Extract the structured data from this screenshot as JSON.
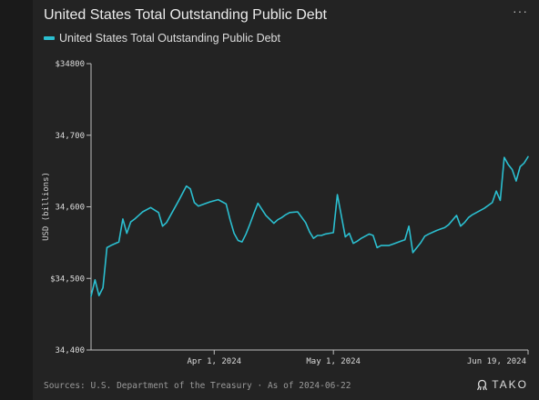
{
  "header": {
    "title": "United States Total Outstanding Public Debt",
    "menu_glyph": "···"
  },
  "chart_data": {
    "type": "line",
    "title": "United States Total Outstanding Public Debt",
    "ylabel": "USD (billions)",
    "xlabel": "",
    "ylim": [
      34400,
      34800
    ],
    "xlim": [
      "2024-03-01",
      "2024-06-19"
    ],
    "yticks": [
      34400,
      34500,
      34600,
      34700,
      34800
    ],
    "ytick_labels": [
      "34,400",
      "$34,500",
      "34,600",
      "34,700",
      "$34800"
    ],
    "xticks": [
      "2024-04-01",
      "2024-05-01",
      "2024-06-19"
    ],
    "xtick_labels": [
      "Apr 1, 2024",
      "May 1, 2024",
      "Jun 19, 2024"
    ],
    "grid": false,
    "legend": "top-left",
    "series": [
      {
        "name": "United States Total Outstanding Public Debt",
        "color": "#2bbfd0",
        "x": [
          "2024-03-01",
          "2024-03-02",
          "2024-03-03",
          "2024-03-04",
          "2024-03-05",
          "2024-03-06",
          "2024-03-08",
          "2024-03-09",
          "2024-03-10",
          "2024-03-11",
          "2024-03-12",
          "2024-03-13",
          "2024-03-14",
          "2024-03-16",
          "2024-03-18",
          "2024-03-19",
          "2024-03-20",
          "2024-03-21",
          "2024-03-23",
          "2024-03-25",
          "2024-03-26",
          "2024-03-27",
          "2024-03-28",
          "2024-03-29",
          "2024-03-31",
          "2024-04-02",
          "2024-04-04",
          "2024-04-05",
          "2024-04-06",
          "2024-04-07",
          "2024-04-08",
          "2024-04-09",
          "2024-04-10",
          "2024-04-11",
          "2024-04-12",
          "2024-04-14",
          "2024-04-16",
          "2024-04-17",
          "2024-04-18",
          "2024-04-19",
          "2024-04-20",
          "2024-04-22",
          "2024-04-24",
          "2024-04-25",
          "2024-04-26",
          "2024-04-27",
          "2024-04-28",
          "2024-04-29",
          "2024-04-30",
          "2024-05-01",
          "2024-05-02",
          "2024-05-04",
          "2024-05-05",
          "2024-05-06",
          "2024-05-07",
          "2024-05-08",
          "2024-05-10",
          "2024-05-11",
          "2024-05-12",
          "2024-05-13",
          "2024-05-15",
          "2024-05-16",
          "2024-05-17",
          "2024-05-18",
          "2024-05-19",
          "2024-05-20",
          "2024-05-21",
          "2024-05-23",
          "2024-05-24",
          "2024-05-25",
          "2024-05-27",
          "2024-05-28",
          "2024-05-29",
          "2024-05-30",
          "2024-06-01",
          "2024-06-02",
          "2024-06-03",
          "2024-06-04",
          "2024-06-05",
          "2024-06-06",
          "2024-06-07",
          "2024-06-08",
          "2024-06-10",
          "2024-06-11",
          "2024-06-12",
          "2024-06-13",
          "2024-06-14",
          "2024-06-15",
          "2024-06-16",
          "2024-06-17",
          "2024-06-18",
          "2024-06-19"
        ],
        "y": [
          34475,
          34498,
          34476,
          34487,
          34543,
          34546,
          34551,
          34583,
          34563,
          34579,
          34583,
          34588,
          34593,
          34599,
          34592,
          34573,
          34578,
          34588,
          34608,
          34629,
          34625,
          34606,
          34601,
          34603,
          34607,
          34610,
          34604,
          34582,
          34563,
          34553,
          34551,
          34562,
          34576,
          34591,
          34605,
          34588,
          34577,
          34582,
          34585,
          34589,
          34592,
          34593,
          34578,
          34565,
          34556,
          34560,
          34560,
          34562,
          34563,
          34564,
          34617,
          34558,
          34563,
          34549,
          34552,
          34556,
          34562,
          34560,
          34543,
          34546,
          34546,
          34548,
          34550,
          34552,
          34554,
          34573,
          34536,
          34550,
          34559,
          34562,
          34567,
          34569,
          34571,
          34575,
          34588,
          34573,
          34578,
          34585,
          34589,
          34592,
          34595,
          34598,
          34606,
          34622,
          34609,
          34669,
          34659,
          34652,
          34636,
          34656,
          34661,
          34670
        ]
      }
    ]
  },
  "footer": {
    "source": "Sources: U.S. Department of the Treasury · As of 2024-06-22"
  },
  "logo": {
    "text": "TAKO"
  }
}
